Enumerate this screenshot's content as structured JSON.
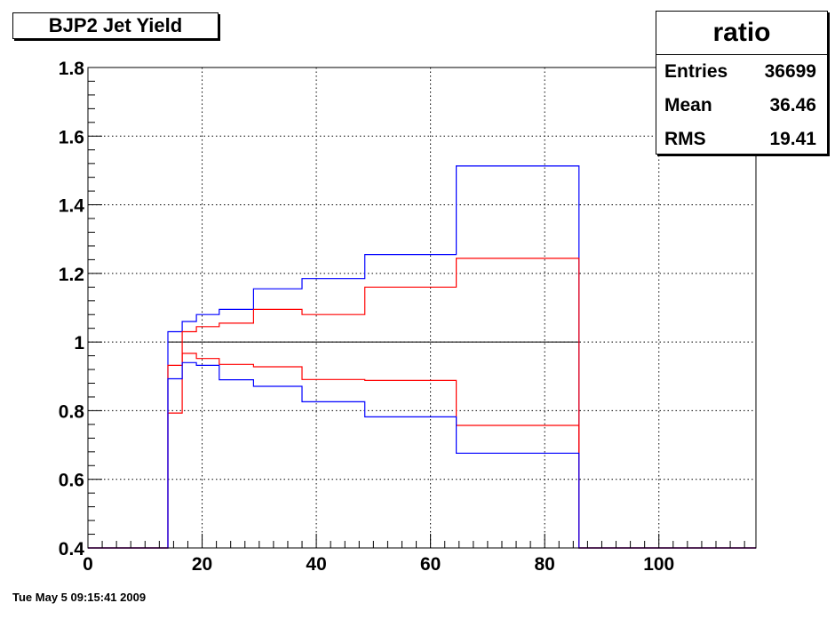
{
  "title": "BJP2 Jet Yield",
  "stats": {
    "name": "ratio",
    "rows": [
      {
        "label": "Entries",
        "value": "36699"
      },
      {
        "label": "Mean",
        "value": "36.46"
      },
      {
        "label": "RMS",
        "value": "19.41"
      }
    ]
  },
  "date_stamp": "Tue May  5 09:15:41 2009",
  "chart_data": {
    "type": "line",
    "title": "BJP2 Jet Yield",
    "xlabel": "",
    "ylabel": "",
    "xlim": [
      0,
      117
    ],
    "ylim": [
      0.4,
      1.8
    ],
    "grid": true,
    "x_ticks": [
      0,
      20,
      40,
      60,
      80,
      100
    ],
    "x_tick_labels": [
      "0",
      "20",
      "40",
      "60",
      "80",
      "100"
    ],
    "y_ticks": [
      0.4,
      0.6,
      0.8,
      1.0,
      1.2,
      1.4,
      1.6,
      1.8
    ],
    "y_tick_labels": [
      "0.4",
      "0.6",
      "0.8",
      "1",
      "1.2",
      "1.4",
      "1.6",
      "1.8"
    ],
    "reference_line": {
      "y": 1.0,
      "x_range": [
        14,
        86
      ],
      "color": "#000000"
    },
    "bin_edges": [
      0,
      14,
      16.5,
      19,
      23,
      29,
      37.5,
      48.5,
      64.5,
      86,
      117
    ],
    "series": [
      {
        "color": "#0000ff",
        "values": [
          0.4,
          1.03,
          1.06,
          1.08,
          1.095,
          1.155,
          1.185,
          1.255,
          1.513,
          0.4
        ]
      },
      {
        "color": "#ff0000",
        "values": [
          0.4,
          0.793,
          1.03,
          1.045,
          1.055,
          1.095,
          1.08,
          1.16,
          1.244,
          0.4
        ]
      },
      {
        "color": "#ff0000",
        "values": [
          0.4,
          0.932,
          0.967,
          0.952,
          0.935,
          0.928,
          0.891,
          0.888,
          0.757,
          0.4
        ]
      },
      {
        "color": "#0000ff",
        "values": [
          0.4,
          0.893,
          0.94,
          0.932,
          0.89,
          0.871,
          0.826,
          0.782,
          0.676,
          0.4
        ]
      }
    ]
  }
}
